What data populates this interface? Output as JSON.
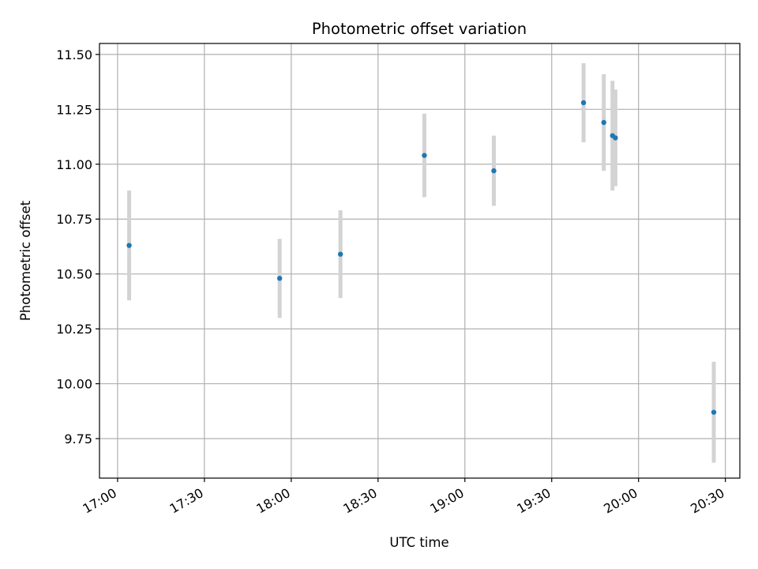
{
  "chart_data": {
    "type": "scatter",
    "title": "Photometric offset variation",
    "xlabel": "UTC time",
    "ylabel": "Photometric offset",
    "x_ticks": [
      "17:00",
      "17:30",
      "18:00",
      "18:30",
      "19:00",
      "19:30",
      "20:00",
      "20:30"
    ],
    "y_ticks": [
      "9.75",
      "10.00",
      "10.25",
      "10.50",
      "10.75",
      "11.00",
      "11.25",
      "11.50"
    ],
    "xlim": [
      "16:53:45",
      "20:35:00"
    ],
    "ylim": [
      9.57,
      11.55
    ],
    "grid": true,
    "points": [
      {
        "x": "17:04",
        "y": 10.63,
        "yerr": 0.25
      },
      {
        "x": "17:56",
        "y": 10.48,
        "yerr": 0.18
      },
      {
        "x": "18:17",
        "y": 10.59,
        "yerr": 0.2
      },
      {
        "x": "18:46",
        "y": 11.04,
        "yerr": 0.19
      },
      {
        "x": "19:10",
        "y": 10.97,
        "yerr": 0.16
      },
      {
        "x": "19:41",
        "y": 11.28,
        "yerr": 0.18
      },
      {
        "x": "19:48",
        "y": 11.19,
        "yerr": 0.22
      },
      {
        "x": "19:51",
        "y": 11.13,
        "yerr": 0.25
      },
      {
        "x": "19:52",
        "y": 11.12,
        "yerr": 0.22
      },
      {
        "x": "20:26",
        "y": 9.87,
        "yerr": 0.23
      }
    ],
    "colors": {
      "points": "#1f77b4",
      "errorbars": "#d3d3d3",
      "grid": "#b0b0b0",
      "axes": "#000000"
    }
  }
}
